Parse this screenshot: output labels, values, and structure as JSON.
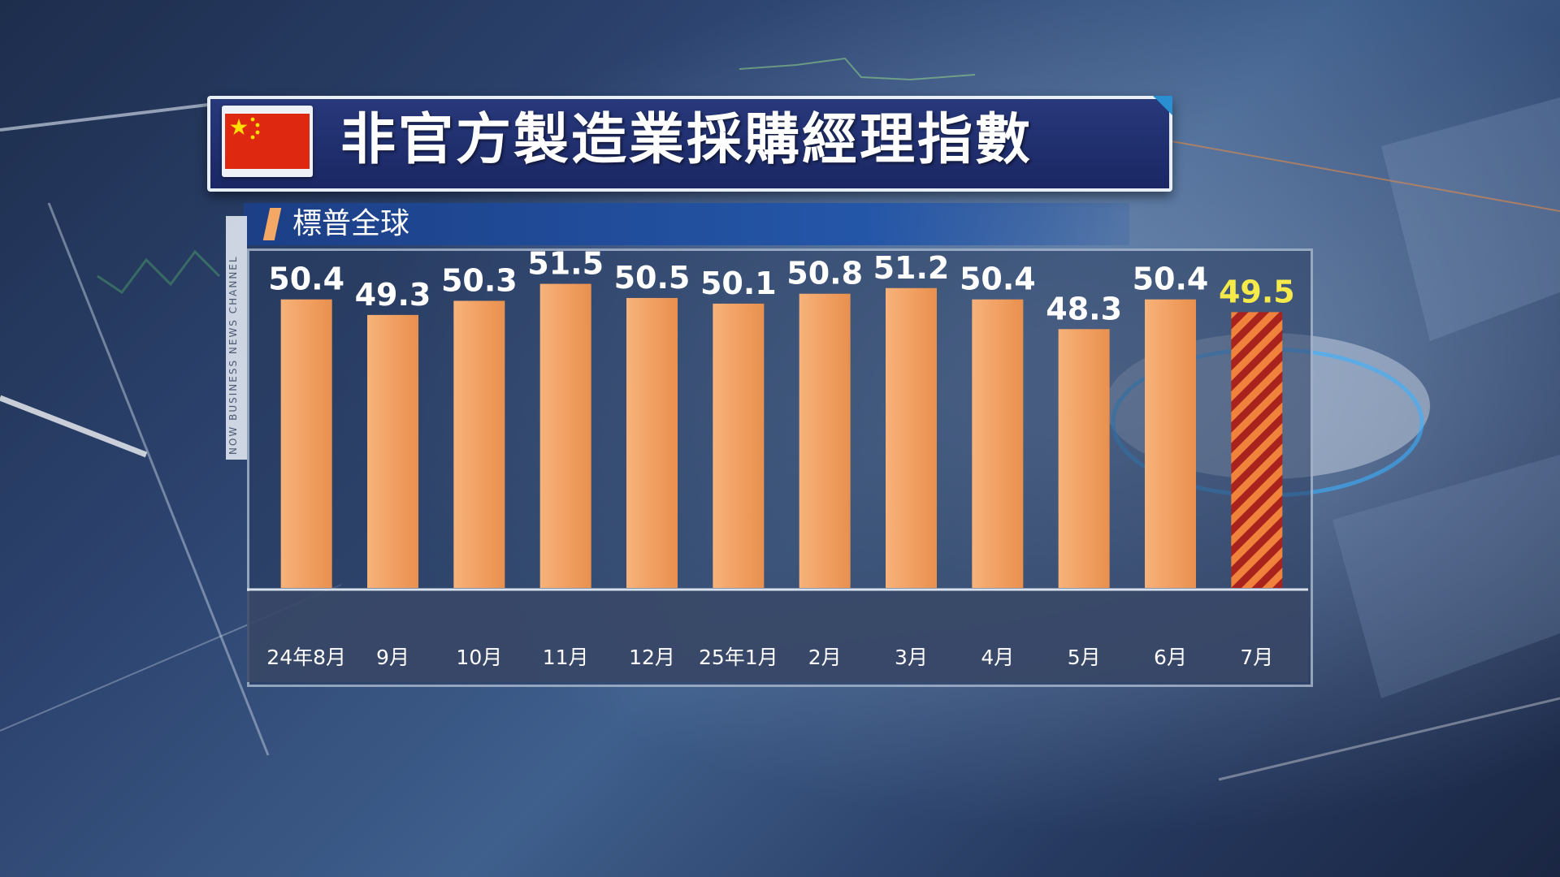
{
  "title": "非官方製造業採購經理指數",
  "subtitle": "標普全球",
  "side_label": "NOW BUSINESS NEWS CHANNEL",
  "colors": {
    "bar": "#f2a063",
    "highlight_stripe_dark": "#a8231d",
    "highlight_stripe_light": "#f0823c",
    "highlight_label": "#f5ea4a",
    "label": "#ffffff"
  },
  "chart_data": {
    "type": "bar",
    "categories": [
      "24年8月",
      "9月",
      "10月",
      "11月",
      "12月",
      "25年1月",
      "2月",
      "3月",
      "4月",
      "5月",
      "6月",
      "7月"
    ],
    "values": [
      50.4,
      49.3,
      50.3,
      51.5,
      50.5,
      50.1,
      50.8,
      51.2,
      50.4,
      48.3,
      50.4,
      49.5
    ],
    "value_labels": [
      "50.4",
      "49.3",
      "50.3",
      "51.5",
      "50.5",
      "50.1",
      "50.8",
      "51.2",
      "50.4",
      "48.3",
      "50.4",
      "49.5"
    ],
    "highlight_index": 11,
    "title": "非官方製造業採購經理指數",
    "subtitle": "標普全球",
    "xlabel": "",
    "ylabel": "",
    "ylim": [
      0,
      52
    ],
    "grid": false,
    "legend": "none"
  }
}
